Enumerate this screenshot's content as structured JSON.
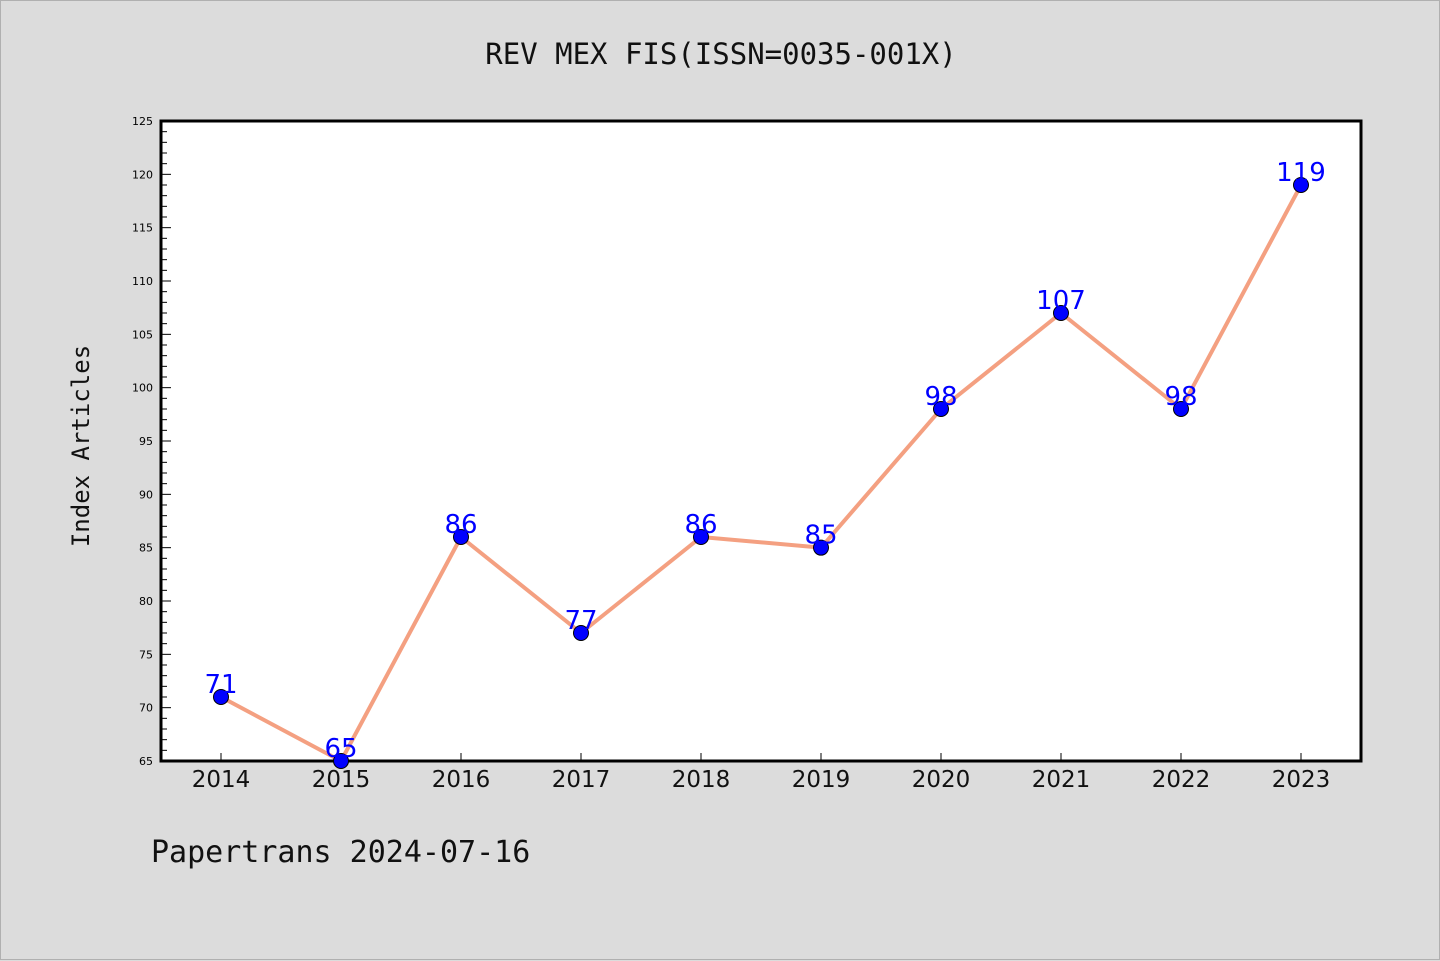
{
  "title": "REV MEX FIS(ISSN=0035-001X)",
  "footer": "Papertrans 2024-07-16",
  "colors": {
    "background": "#dcdcdc",
    "plot_background": "#ffffff",
    "line": "#f4a081",
    "marker": "#0000ff",
    "data_label": "#0000ff"
  },
  "chart_data": {
    "type": "line",
    "title": "REV MEX FIS(ISSN=0035-001X)",
    "xlabel": "",
    "ylabel": "Index Articles",
    "x": [
      "2014",
      "2015",
      "2016",
      "2017",
      "2018",
      "2019",
      "2020",
      "2021",
      "2022",
      "2023"
    ],
    "series": [
      {
        "values": [
          71,
          65,
          86,
          77,
          86,
          85,
          98,
          107,
          98,
          119
        ]
      }
    ],
    "ylim": [
      65,
      125
    ],
    "yticks": [
      65,
      70,
      75,
      80,
      85,
      90,
      95,
      100,
      105,
      110,
      115,
      120,
      125
    ],
    "grid": false,
    "legend": "none"
  }
}
